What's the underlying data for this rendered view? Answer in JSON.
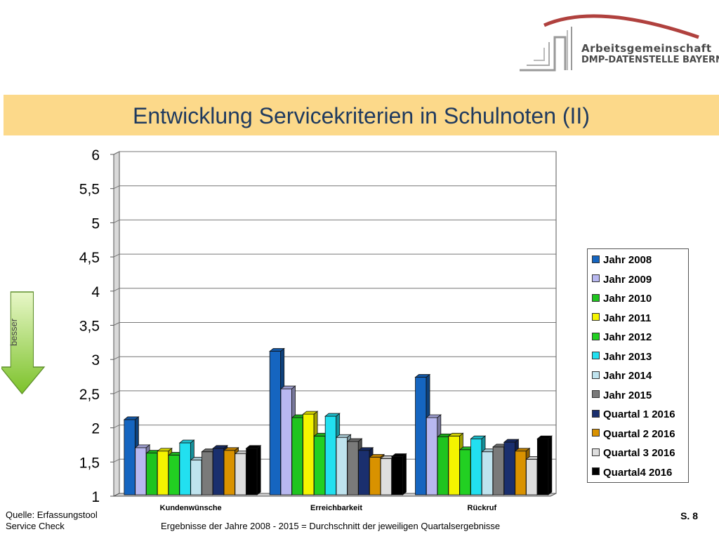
{
  "logo": {
    "line1": "Arbeitsgemeinschaft",
    "line2": "DMP-DATENSTELLE BAYERN"
  },
  "title": "Entwicklung Servicekriterien in Schulnoten (II)",
  "arrow_label": "besser",
  "footer": {
    "source_line1": "Quelle: Erfassungstool",
    "source_line2": "Service Check",
    "note": "Ergebnisse der Jahre 2008 - 2015  = Durchschnitt der jeweiligen Quartalsergebnisse",
    "page": "S. 8"
  },
  "chart_data": {
    "type": "bar",
    "categories": [
      "Kundenwünsche",
      "Erreichbarkeit",
      "Rückruf"
    ],
    "y_ticks": [
      "1",
      "1,5",
      "2",
      "2,5",
      "3",
      "3,5",
      "4",
      "4,5",
      "5",
      "5,5",
      "6"
    ],
    "ylim": [
      1,
      6
    ],
    "grid": true,
    "legend_position": "right",
    "series": [
      {
        "name": "Jahr 2008",
        "color": "#1565c0",
        "values": [
          2.12,
          3.12,
          2.74
        ]
      },
      {
        "name": "Jahr 2009",
        "color": "#b8b8f0",
        "values": [
          1.71,
          2.57,
          2.15
        ]
      },
      {
        "name": "Jahr 2010",
        "color": "#1fc41f",
        "values": [
          1.63,
          2.15,
          1.87
        ]
      },
      {
        "name": "Jahr 2011",
        "color": "#f4f400",
        "values": [
          1.66,
          2.2,
          1.88
        ]
      },
      {
        "name": "Jahr 2012",
        "color": "#22d022",
        "values": [
          1.6,
          1.88,
          1.68
        ]
      },
      {
        "name": "Jahr 2013",
        "color": "#22e0f0",
        "values": [
          1.78,
          2.17,
          1.84
        ]
      },
      {
        "name": "Jahr 2014",
        "color": "#bfe3ee",
        "values": [
          1.53,
          1.86,
          1.65
        ]
      },
      {
        "name": "Jahr 2015",
        "color": "#7a7a7a",
        "values": [
          1.65,
          1.8,
          1.72
        ]
      },
      {
        "name": "Quartal 1 2016",
        "color": "#1a2f6e",
        "values": [
          1.7,
          1.67,
          1.79
        ]
      },
      {
        "name": "Quartal 2 2016",
        "color": "#d99200",
        "values": [
          1.67,
          1.57,
          1.66
        ]
      },
      {
        "name": "Quartal 3 2016",
        "color": "#dedede",
        "values": [
          1.62,
          1.55,
          1.54
        ]
      },
      {
        "name": "Quartal4 2016",
        "color": "#000000",
        "values": [
          1.7,
          1.58,
          1.84
        ]
      }
    ]
  }
}
